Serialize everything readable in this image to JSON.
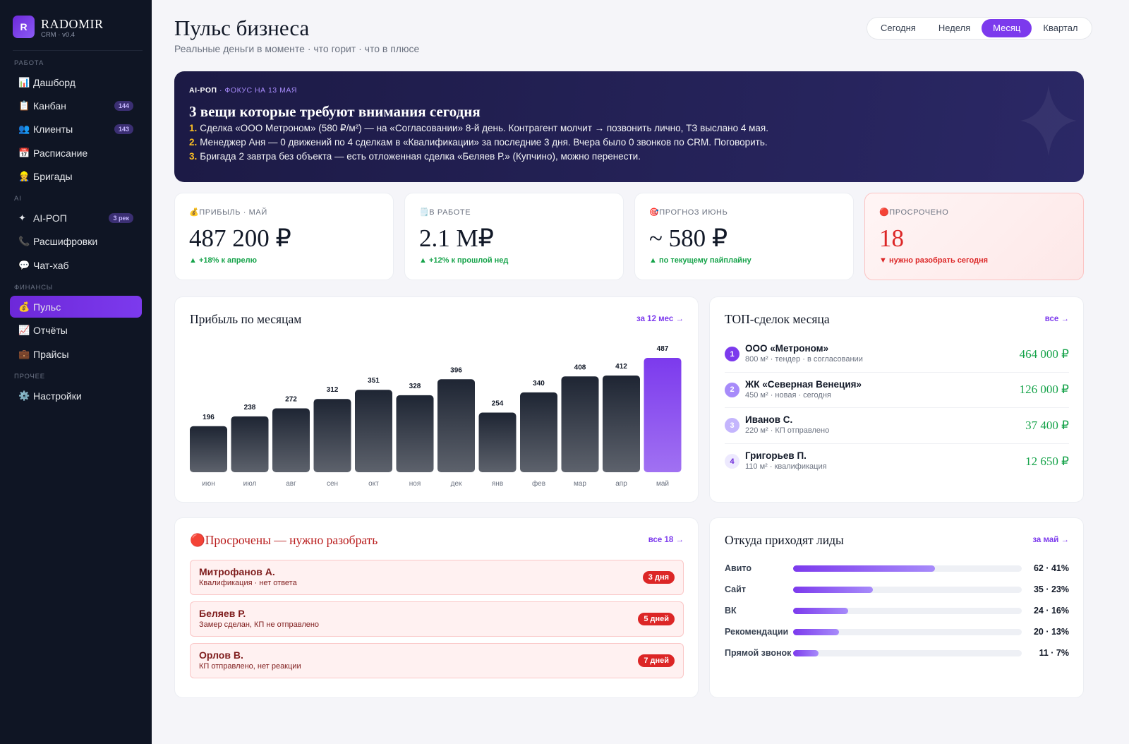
{
  "sidebar": {
    "logo": "R",
    "brand": "RADOMIR",
    "version": "CRM · v0.4",
    "sections": [
      {
        "title": "РАБОТА",
        "items": [
          {
            "icon": "📊",
            "label": "Дашборд"
          },
          {
            "icon": "📋",
            "label": "Канбан",
            "badge": 144
          },
          {
            "icon": "👥",
            "label": "Клиенты",
            "badge": 143
          },
          {
            "icon": "📅",
            "label": "Расписание"
          },
          {
            "icon": "👷",
            "label": "Бригады"
          }
        ]
      },
      {
        "title": "AI",
        "items": [
          {
            "icon": "✦",
            "label": "AI-РОП",
            "badge": "3 рек"
          },
          {
            "icon": "📞",
            "label": "Расшифровки"
          },
          {
            "icon": "💬",
            "label": "Чат-хаб"
          }
        ]
      },
      {
        "title": "ФИНАНСЫ",
        "items": [
          {
            "icon": "💰",
            "label": "Пульс",
            "active": true
          },
          {
            "icon": "📈",
            "label": "Отчёты"
          },
          {
            "icon": "💼",
            "label": "Прайсы"
          }
        ]
      },
      {
        "title": "ПРОЧЕЕ",
        "items": [
          {
            "icon": "⚙️",
            "label": "Настройки"
          }
        ]
      }
    ]
  },
  "header": {
    "title": "Пульс бизнеса",
    "subtitle": "Реальные деньги в моменте · что горит · что в плюсе",
    "periods": [
      {
        "label": "Сегодня"
      },
      {
        "label": "Неделя"
      },
      {
        "label": "Месяц",
        "active": true
      },
      {
        "label": "Квартал"
      }
    ]
  },
  "focus": {
    "kicker": "AI-РОП",
    "note": "· ФОКУС НА 13 МАЯ",
    "title": "3 вещи которые требуют внимания сегодня",
    "items": [
      {
        "num": "1.",
        "text": "Сделка «ООО Метроном» (580 ₽/м²) — на «Согласовании» 8-й день. Контрагент молчит → позвонить лично, ТЗ выслано 4 мая."
      },
      {
        "num": "2.",
        "text": "Менеджер Аня — 0 движений по 4 сделкам в «Квалификации» за последние 3 дня. Вчера было 0 звонков по CRM. Поговорить."
      },
      {
        "num": "3.",
        "text": "Бригада 2 завтра без объекта — есть отложенная сделка «Беляев Р.» (Купчино), можно перенести."
      }
    ]
  },
  "kpis": [
    {
      "icon": "💰",
      "label": "ПРИБЫЛЬ · МАЙ",
      "value": "487 200 ₽",
      "delta": "▲ +18% к апрелю",
      "trend": "up"
    },
    {
      "icon": "🗒️",
      "label": "В РАБОТЕ",
      "value": "2.1 М₽",
      "delta": "▲ +12% к прошлой нед",
      "trend": "up"
    },
    {
      "icon": "🎯",
      "label": "ПРОГНОЗ ИЮНЬ",
      "value": "~ 580 ₽",
      "delta": "▲ по текущему пайплайну",
      "trend": "up"
    },
    {
      "icon": "🔴",
      "label": "ПРОСРОЧЕНО",
      "value": 18,
      "delta": "▼ нужно разобрать сегодня",
      "trend": "down",
      "alert": true
    }
  ],
  "chart_data": {
    "type": "bar",
    "title": "Прибыль по месяцам",
    "link": "за 12 мес →",
    "categories": [
      "июн",
      "июл",
      "авг",
      "сен",
      "окт",
      "ноя",
      "дек",
      "янв",
      "фев",
      "мар",
      "апр",
      "май"
    ],
    "values": [
      196,
      238,
      272,
      312,
      351,
      328,
      396,
      254,
      340,
      408,
      412,
      487
    ],
    "colors": [
      "#1e2533",
      "#1e2533",
      "#1e2533",
      "#1e2533",
      "#1e2533",
      "#1e2533",
      "#1e2533",
      "#1e2533",
      "#1e2533",
      "#1e2533",
      "#1e2533",
      "#7c3aed"
    ]
  },
  "top_deals": {
    "title": "ТОП-сделок месяца",
    "link": "все →",
    "deals": [
      {
        "rank": 1,
        "name": "ООО «Метроном»",
        "meta": "800 м² · тендер · в согласовании",
        "amount": "464 000 ₽",
        "color": "#7c3aed"
      },
      {
        "rank": 2,
        "name": "ЖК «Северная Венеция»",
        "meta": "450 м² · новая · сегодня",
        "amount": "126 000 ₽",
        "color": "#a78bfa"
      },
      {
        "rank": 3,
        "name": "Иванов С.",
        "meta": "220 м² · КП отправлено",
        "amount": "37 400 ₽",
        "color": "#c4b5fd"
      },
      {
        "rank": 4,
        "name": "Григорьев П.",
        "meta": "110 м² · квалификация",
        "amount": "12 650 ₽",
        "color": "#ede9fe"
      }
    ]
  },
  "overdue": {
    "icon": "🔴",
    "title": "Просрочены — нужно разобрать",
    "link": "все 18 →",
    "items": [
      {
        "name": "Митрофанов А.",
        "note": "Квалификация · нет ответа",
        "badge": "3 дня"
      },
      {
        "name": "Беляев Р.",
        "note": "Замер сделан, КП не отправлено",
        "badge": "5 дней"
      },
      {
        "name": "Орлов В.",
        "note": "КП отправлено, нет реакции",
        "badge": "7 дней"
      }
    ]
  },
  "leads": {
    "title": "Откуда приходят лиды",
    "link": "за май →",
    "xlim": [
      0,
      100
    ],
    "rows": [
      {
        "source": "Авито",
        "count": 62,
        "label": "62 · 41%"
      },
      {
        "source": "Сайт",
        "count": 35,
        "label": "35 · 23%"
      },
      {
        "source": "ВК",
        "count": 24,
        "label": "24 · 16%"
      },
      {
        "source": "Рекомендации",
        "count": 20,
        "label": "20 · 13%"
      },
      {
        "source": "Прямой звонок",
        "count": 11,
        "label": "11 · 7%"
      }
    ]
  }
}
